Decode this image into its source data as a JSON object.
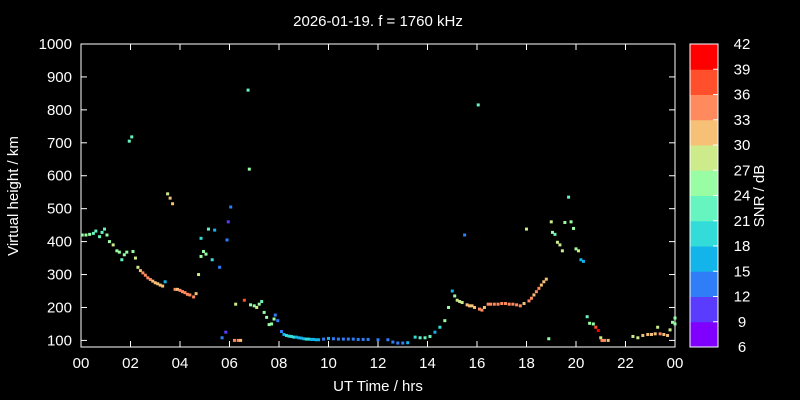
{
  "chart_data": {
    "type": "scatter",
    "title": "2026-01-19. f = 1760 kHz",
    "xlabel": "UT Time / hrs",
    "ylabel": "Virtual height / km",
    "xlim": [
      0,
      24
    ],
    "ylim": [
      80,
      1000
    ],
    "x_ticks": [
      "00",
      "02",
      "04",
      "06",
      "08",
      "10",
      "12",
      "14",
      "16",
      "18",
      "20",
      "22",
      "00"
    ],
    "y_ticks": [
      "100",
      "200",
      "300",
      "400",
      "500",
      "600",
      "700",
      "800",
      "900",
      "1000"
    ],
    "grid": false,
    "colorbar": {
      "label": "SNR / dB",
      "min": 6,
      "max": 42,
      "ticks": [
        "6",
        "9",
        "12",
        "15",
        "18",
        "21",
        "24",
        "27",
        "30",
        "33",
        "36",
        "39",
        "42"
      ],
      "colors": [
        "#7f00ff",
        "#5a3cff",
        "#2f7df7",
        "#12b4ea",
        "#33dcd8",
        "#66f5c0",
        "#99fda4",
        "#cdeb8b",
        "#f6c176",
        "#ff8a5e",
        "#ff4f2b",
        "#ff0000"
      ]
    },
    "series": [
      {
        "values": [
          [
            0.05,
            420,
            24
          ],
          [
            0.2,
            420,
            24
          ],
          [
            0.35,
            422,
            24
          ],
          [
            0.5,
            425,
            23
          ],
          [
            0.6,
            432,
            22
          ],
          [
            0.75,
            415,
            21
          ],
          [
            0.85,
            428,
            23
          ],
          [
            0.95,
            438,
            22
          ],
          [
            1.05,
            420,
            24
          ],
          [
            1.15,
            400,
            26
          ],
          [
            1.3,
            390,
            27
          ],
          [
            1.45,
            372,
            26
          ],
          [
            1.55,
            368,
            24
          ],
          [
            1.65,
            345,
            23
          ],
          [
            1.75,
            360,
            24
          ],
          [
            1.85,
            368,
            26
          ],
          [
            1.95,
            705,
            21
          ],
          [
            2.05,
            718,
            23
          ],
          [
            2.1,
            370,
            25
          ],
          [
            2.2,
            350,
            27
          ],
          [
            2.3,
            322,
            29
          ],
          [
            2.4,
            312,
            32
          ],
          [
            2.5,
            305,
            33
          ],
          [
            2.6,
            298,
            33
          ],
          [
            2.7,
            290,
            34
          ],
          [
            2.8,
            285,
            33
          ],
          [
            2.9,
            280,
            32
          ],
          [
            3.0,
            275,
            32
          ],
          [
            3.1,
            272,
            32
          ],
          [
            3.2,
            268,
            31
          ],
          [
            3.3,
            265,
            31
          ],
          [
            3.4,
            278,
            15
          ],
          [
            3.5,
            545,
            28
          ],
          [
            3.6,
            532,
            30
          ],
          [
            3.7,
            515,
            31
          ],
          [
            3.8,
            255,
            33
          ],
          [
            3.9,
            255,
            32
          ],
          [
            4.0,
            252,
            33
          ],
          [
            4.1,
            248,
            33
          ],
          [
            4.2,
            245,
            34
          ],
          [
            4.3,
            240,
            34
          ],
          [
            4.4,
            238,
            33
          ],
          [
            4.55,
            232,
            33
          ],
          [
            4.65,
            242,
            31
          ],
          [
            4.75,
            300,
            27
          ],
          [
            4.85,
            355,
            25
          ],
          [
            4.85,
            410,
            18
          ],
          [
            4.95,
            370,
            24
          ],
          [
            5.05,
            362,
            26
          ],
          [
            5.15,
            438,
            21
          ],
          [
            5.3,
            345,
            18
          ],
          [
            5.4,
            435,
            15
          ],
          [
            5.6,
            322,
            13
          ],
          [
            5.7,
            108,
            12
          ],
          [
            5.85,
            125,
            11
          ],
          [
            5.9,
            405,
            13
          ],
          [
            5.95,
            460,
            11
          ],
          [
            6.05,
            505,
            14
          ],
          [
            6.2,
            100,
            33
          ],
          [
            6.25,
            210,
            27
          ],
          [
            6.35,
            100,
            33
          ],
          [
            6.45,
            100,
            32
          ],
          [
            6.6,
            222,
            36
          ],
          [
            6.75,
            860,
            22
          ],
          [
            6.8,
            620,
            25
          ],
          [
            6.85,
            208,
            26
          ],
          [
            7.0,
            205,
            25
          ],
          [
            7.1,
            200,
            27
          ],
          [
            7.2,
            210,
            24
          ],
          [
            7.3,
            218,
            23
          ],
          [
            7.4,
            185,
            25
          ],
          [
            7.5,
            170,
            24
          ],
          [
            7.6,
            148,
            26
          ],
          [
            7.7,
            150,
            25
          ],
          [
            7.8,
            165,
            24
          ],
          [
            7.85,
            177,
            14
          ],
          [
            7.95,
            160,
            13
          ],
          [
            8.1,
            127,
            14
          ],
          [
            8.2,
            118,
            16
          ],
          [
            8.3,
            115,
            18
          ],
          [
            8.4,
            113,
            18
          ],
          [
            8.5,
            112,
            19
          ],
          [
            8.6,
            110,
            20
          ],
          [
            8.7,
            110,
            17
          ],
          [
            8.8,
            108,
            16
          ],
          [
            8.9,
            107,
            16
          ],
          [
            9.0,
            105,
            17
          ],
          [
            9.1,
            104,
            18
          ],
          [
            9.2,
            104,
            18
          ],
          [
            9.3,
            103,
            17
          ],
          [
            9.4,
            103,
            16
          ],
          [
            9.5,
            102,
            16
          ],
          [
            9.6,
            102,
            15
          ],
          [
            9.8,
            104,
            14
          ],
          [
            10.0,
            106,
            15
          ],
          [
            10.2,
            105,
            14
          ],
          [
            10.4,
            104,
            13
          ],
          [
            10.6,
            104,
            13
          ],
          [
            10.8,
            104,
            14
          ],
          [
            11.0,
            104,
            13
          ],
          [
            11.2,
            103,
            13
          ],
          [
            11.4,
            103,
            12
          ],
          [
            11.6,
            103,
            13
          ],
          [
            12.0,
            102,
            13
          ],
          [
            12.4,
            102,
            14
          ],
          [
            12.6,
            95,
            13
          ],
          [
            12.8,
            92,
            14
          ],
          [
            13.0,
            92,
            14
          ],
          [
            13.2,
            93,
            15
          ],
          [
            13.5,
            110,
            20
          ],
          [
            13.7,
            108,
            21
          ],
          [
            13.9,
            108,
            22
          ],
          [
            14.1,
            112,
            22
          ],
          [
            14.3,
            125,
            17
          ],
          [
            14.5,
            140,
            20
          ],
          [
            14.7,
            160,
            24
          ],
          [
            14.85,
            200,
            25
          ],
          [
            15.0,
            250,
            17
          ],
          [
            15.1,
            235,
            24
          ],
          [
            15.2,
            222,
            28
          ],
          [
            15.3,
            218,
            29
          ],
          [
            15.4,
            215,
            29
          ],
          [
            15.5,
            420,
            13
          ],
          [
            15.6,
            208,
            30
          ],
          [
            15.7,
            205,
            31
          ],
          [
            15.8,
            205,
            31
          ],
          [
            15.9,
            200,
            30
          ],
          [
            16.05,
            815,
            22
          ],
          [
            16.1,
            195,
            33
          ],
          [
            16.2,
            192,
            34
          ],
          [
            16.3,
            200,
            32
          ],
          [
            16.45,
            210,
            34
          ],
          [
            16.55,
            210,
            35
          ],
          [
            16.7,
            210,
            34
          ],
          [
            16.85,
            210,
            34
          ],
          [
            17.0,
            212,
            34
          ],
          [
            17.15,
            212,
            33
          ],
          [
            17.3,
            210,
            34
          ],
          [
            17.45,
            210,
            34
          ],
          [
            17.6,
            208,
            34
          ],
          [
            17.75,
            205,
            35
          ],
          [
            17.9,
            212,
            32
          ],
          [
            18.0,
            438,
            29
          ],
          [
            18.1,
            220,
            33
          ],
          [
            18.2,
            228,
            33
          ],
          [
            18.3,
            238,
            32
          ],
          [
            18.4,
            248,
            33
          ],
          [
            18.5,
            258,
            33
          ],
          [
            18.6,
            268,
            32
          ],
          [
            18.7,
            278,
            31
          ],
          [
            18.8,
            286,
            30
          ],
          [
            18.9,
            105,
            25
          ],
          [
            19.0,
            460,
            29
          ],
          [
            19.05,
            428,
            24
          ],
          [
            19.15,
            422,
            23
          ],
          [
            19.25,
            398,
            28
          ],
          [
            19.35,
            390,
            29
          ],
          [
            19.45,
            372,
            27
          ],
          [
            19.55,
            458,
            25
          ],
          [
            19.7,
            535,
            21
          ],
          [
            19.8,
            460,
            24
          ],
          [
            19.9,
            440,
            25
          ],
          [
            20.0,
            378,
            26
          ],
          [
            20.1,
            372,
            27
          ],
          [
            20.2,
            345,
            17
          ],
          [
            20.3,
            340,
            16
          ],
          [
            20.45,
            172,
            22
          ],
          [
            20.55,
            152,
            25
          ],
          [
            20.7,
            150,
            24
          ],
          [
            20.8,
            140,
            36
          ],
          [
            20.9,
            130,
            40
          ],
          [
            21.0,
            108,
            27
          ],
          [
            21.05,
            100,
            33
          ],
          [
            21.15,
            100,
            33
          ],
          [
            21.3,
            100,
            30
          ],
          [
            22.3,
            112,
            27
          ],
          [
            22.5,
            108,
            28
          ],
          [
            22.7,
            115,
            32
          ],
          [
            22.9,
            118,
            31
          ],
          [
            23.05,
            118,
            32
          ],
          [
            23.2,
            120,
            30
          ],
          [
            23.3,
            140,
            28
          ],
          [
            23.4,
            120,
            33
          ],
          [
            23.55,
            118,
            32
          ],
          [
            23.7,
            115,
            30
          ],
          [
            23.8,
            132,
            27
          ],
          [
            23.9,
            155,
            25
          ],
          [
            24.0,
            168,
            24
          ],
          [
            24.0,
            150,
            25
          ]
        ]
      }
    ]
  }
}
